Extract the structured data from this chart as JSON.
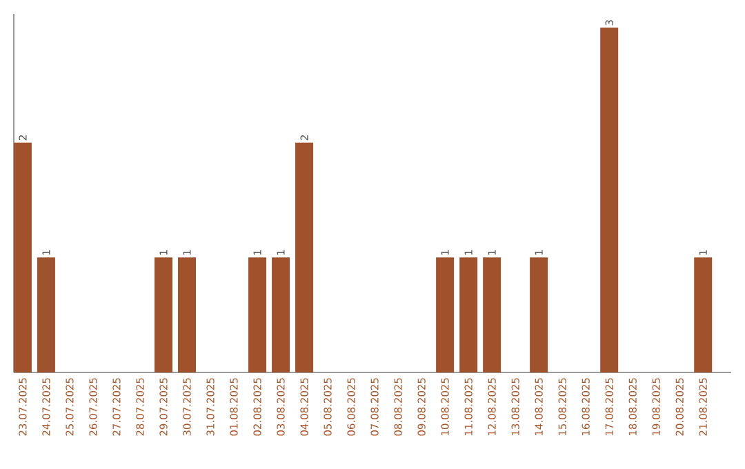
{
  "chart_data": {
    "type": "bar",
    "color": "#a0522d",
    "categories": [
      "23.07.2025",
      "24.07.2025",
      "25.07.2025",
      "26.07.2025",
      "27.07.2025",
      "28.07.2025",
      "29.07.2025",
      "30.07.2025",
      "31.07.2025",
      "01.08.2025",
      "02.08.2025",
      "03.08.2025",
      "04.08.2025",
      "05.08.2025",
      "06.08.2025",
      "07.08.2025",
      "08.08.2025",
      "09.08.2025",
      "10.08.2025",
      "11.08.2025",
      "12.08.2025",
      "13.08.2025",
      "14.08.2025",
      "15.08.2025",
      "16.08.2025",
      "17.08.2025",
      "18.08.2025",
      "19.08.2025",
      "20.08.2025",
      "21.08.2025"
    ],
    "values": [
      2,
      1,
      0,
      0,
      0,
      0,
      1,
      1,
      0,
      0,
      1,
      1,
      2,
      0,
      0,
      0,
      0,
      0,
      1,
      1,
      1,
      0,
      1,
      0,
      0,
      3,
      0,
      0,
      0,
      1
    ],
    "value_labels": [
      "2",
      "1",
      null,
      null,
      null,
      null,
      "1",
      "1",
      null,
      null,
      "1",
      "1",
      "2",
      null,
      null,
      null,
      null,
      null,
      "1",
      "1",
      "1",
      null,
      "1",
      null,
      null,
      "3",
      null,
      null,
      null,
      "1"
    ],
    "tick_labels": "x"
  }
}
